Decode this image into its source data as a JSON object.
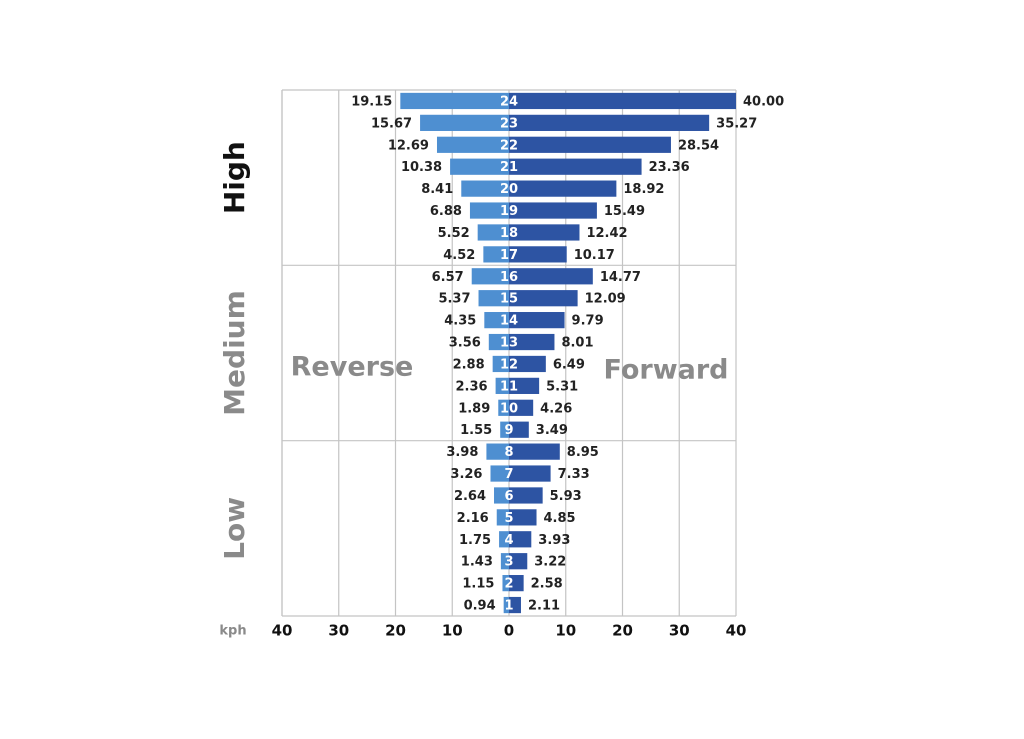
{
  "chart_data": {
    "type": "butterfly-bar",
    "categories": [
      "24",
      "23",
      "22",
      "21",
      "20",
      "19",
      "18",
      "17",
      "16",
      "15",
      "14",
      "13",
      "12",
      "11",
      "10",
      "9",
      "8",
      "7",
      "6",
      "5",
      "4",
      "3",
      "2",
      "1"
    ],
    "series": [
      {
        "name": "Reverse",
        "color": "#4e8fd1",
        "values": [
          -19.15,
          -15.67,
          -12.69,
          -10.38,
          -8.41,
          -6.88,
          -5.52,
          -4.52,
          -6.57,
          -5.37,
          -4.35,
          -3.56,
          -2.88,
          -2.36,
          -1.89,
          -1.55,
          -3.98,
          -3.26,
          -2.64,
          -2.16,
          -1.75,
          -1.43,
          -1.15,
          -0.94
        ],
        "value_labels": [
          "19.15",
          "15.67",
          "12.69",
          "10.38",
          "8.41",
          "6.88",
          "5.52",
          "4.52",
          "6.57",
          "5.37",
          "4.35",
          "3.56",
          "2.88",
          "2.36",
          "1.89",
          "1.55",
          "3.98",
          "3.26",
          "2.64",
          "2.16",
          "1.75",
          "1.43",
          "1.15",
          "0.94"
        ]
      },
      {
        "name": "Forward",
        "color": "#2d54a3",
        "values": [
          40.0,
          35.27,
          28.54,
          23.36,
          18.92,
          15.49,
          12.42,
          10.17,
          14.77,
          12.09,
          9.79,
          8.01,
          6.49,
          5.31,
          4.26,
          3.49,
          8.95,
          7.33,
          5.93,
          4.85,
          3.93,
          3.22,
          2.58,
          2.11
        ],
        "value_labels": [
          "40.00",
          "35.27",
          "28.54",
          "23.36",
          "18.92",
          "15.49",
          "12.42",
          "10.17",
          "14.77",
          "12.09",
          "9.79",
          "8.01",
          "6.49",
          "5.31",
          "4.26",
          "3.49",
          "8.95",
          "7.33",
          "5.93",
          "4.85",
          "3.93",
          "3.22",
          "2.58",
          "2.11"
        ]
      }
    ],
    "groups": [
      {
        "name": "High",
        "color": "#111111",
        "count": 8
      },
      {
        "name": "Medium",
        "color": "#8a8a8a",
        "count": 8
      },
      {
        "name": "Low",
        "color": "#8a8a8a",
        "count": 8
      }
    ],
    "x_label": "kph",
    "xlim": [
      -40,
      40
    ],
    "xticks": [
      {
        "value": -40,
        "label": "40"
      },
      {
        "value": -30,
        "label": "30"
      },
      {
        "value": -20,
        "label": "20"
      },
      {
        "value": -10,
        "label": "10"
      },
      0,
      10,
      20,
      30,
      40
    ],
    "grid": true
  }
}
